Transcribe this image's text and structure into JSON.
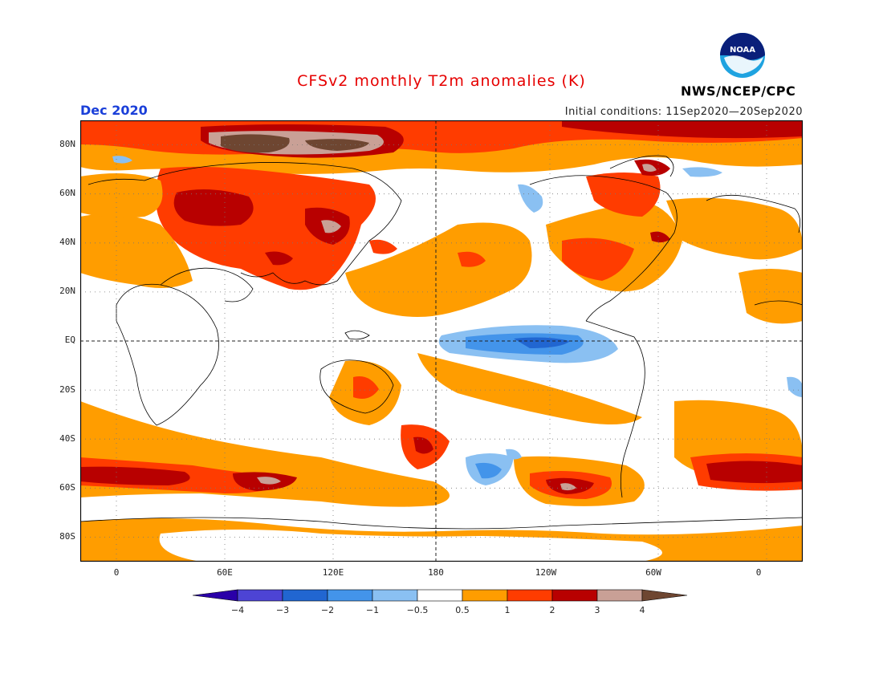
{
  "title": "CFSv2 monthly T2m anomalies (K)",
  "month": "Dec 2020",
  "initial_conditions": "Initial conditions: 11Sep2020—20Sep2020",
  "agency": "NWS/NCEP/CPC",
  "logo": {
    "text": "NOAA",
    "icon": "noaa-logo-icon"
  },
  "map": {
    "lat_labels": [
      "80N",
      "60N",
      "40N",
      "20N",
      "EQ",
      "20S",
      "40S",
      "60S",
      "80S"
    ],
    "lat_values": [
      80,
      60,
      40,
      20,
      0,
      -20,
      -40,
      -60,
      -80
    ],
    "lon_labels": [
      "0",
      "60E",
      "120E",
      "180",
      "120W",
      "60W",
      "0"
    ],
    "lon_values": [
      0,
      60,
      120,
      180,
      240,
      300,
      360
    ],
    "lat_range": [
      -90,
      90
    ],
    "lon_range": [
      -20,
      380
    ]
  },
  "colorbar": {
    "labels": [
      "−4",
      "−3",
      "−2",
      "−1",
      "−0.5",
      "0.5",
      "1",
      "2",
      "3",
      "4"
    ],
    "colors": [
      "#2a00a8",
      "#4d44d4",
      "#2166d1",
      "#4394ea",
      "#8ac0f2",
      "#ffffff",
      "#ff9d00",
      "#ff3c00",
      "#b80000",
      "#c9a096",
      "#6e4631"
    ]
  },
  "colors": {
    "title": "#e60000",
    "month": "#1a3fd9"
  }
}
